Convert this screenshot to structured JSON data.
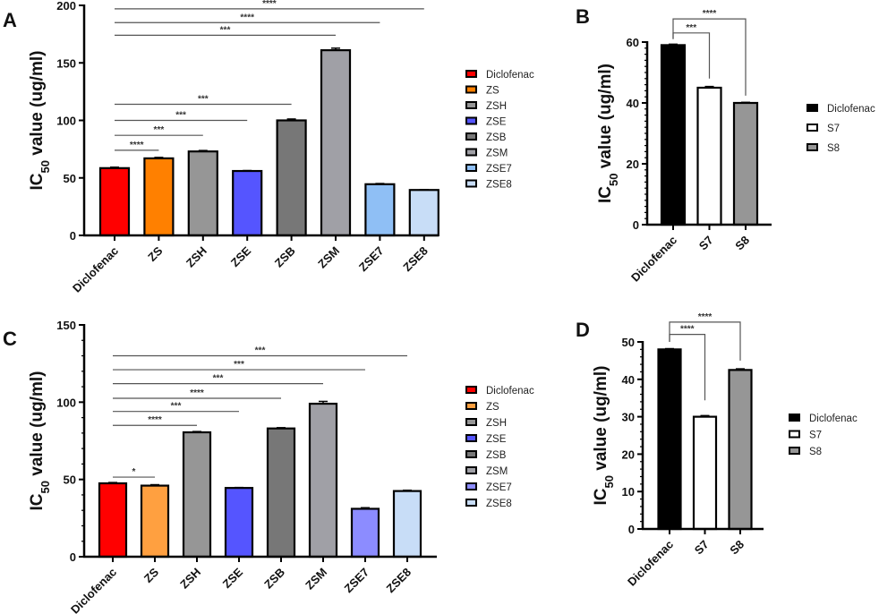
{
  "chart_data": [
    {
      "panel": "A",
      "type": "bar",
      "title": "",
      "xlabel": "",
      "ylabel": {
        "main": "IC",
        "sub": "50",
        "rest": " value (ug/ml)"
      },
      "ylim": [
        0,
        200
      ],
      "yticks": [
        0,
        50,
        100,
        150,
        200
      ],
      "categories": [
        "Diclofenac",
        "ZS",
        "ZSH",
        "ZSE",
        "ZSB",
        "ZSM",
        "ZSE7",
        "ZSE8"
      ],
      "values": [
        58.5,
        67,
        73,
        56,
        100,
        161,
        44.5,
        39.5
      ],
      "errors": [
        0.8,
        0.8,
        0.8,
        0.4,
        1.2,
        1.8,
        0.6,
        0.3
      ],
      "colors": [
        "#ff0000",
        "#ff8000",
        "#969696",
        "#5555ff",
        "#777777",
        "#a0a0a6",
        "#8fbff5",
        "#c8ddf7"
      ],
      "legend": {
        "placement": "right",
        "entries": [
          "Diclofenac",
          "ZS",
          "ZSH",
          "ZSE",
          "ZSB",
          "ZSM",
          "ZSE7",
          "ZSE8"
        ]
      },
      "significance": [
        {
          "from": 0,
          "to": 1,
          "label": "****",
          "y": 74
        },
        {
          "from": 0,
          "to": 2,
          "label": "***",
          "y": 87
        },
        {
          "from": 0,
          "to": 3,
          "label": "***",
          "y": 100
        },
        {
          "from": 0,
          "to": 4,
          "label": "***",
          "y": 114
        },
        {
          "from": 0,
          "to": 5,
          "label": "***",
          "y": 174
        },
        {
          "from": 0,
          "to": 6,
          "label": "****",
          "y": 185
        },
        {
          "from": 0,
          "to": 7,
          "label": "****",
          "y": 197
        }
      ]
    },
    {
      "panel": "B",
      "type": "bar",
      "title": "",
      "xlabel": "",
      "ylabel": {
        "main": "IC",
        "sub": "50",
        "rest": " value (ug/ml)"
      },
      "ylim": [
        0,
        60
      ],
      "yticks": [
        0,
        20,
        40,
        60
      ],
      "categories": [
        "Diclofenac",
        "S7",
        "S8"
      ],
      "values": [
        59,
        45,
        40
      ],
      "errors": [
        0.3,
        0.4,
        0.2
      ],
      "colors": [
        "#000000",
        "#ffffff",
        "#969696"
      ],
      "legend": {
        "placement": "right",
        "entries": [
          "Diclofenac",
          "S7",
          "S8"
        ]
      },
      "significance": [
        {
          "from": 0,
          "to": 1,
          "label": "***",
          "y": 63,
          "drop_from": 61,
          "drop_to": 48
        },
        {
          "from": 0,
          "to": 2,
          "label": "****",
          "y": 67.6,
          "drop_from": 61,
          "drop_to": 42.4
        }
      ]
    },
    {
      "panel": "C",
      "type": "bar",
      "title": "",
      "xlabel": "",
      "ylabel": {
        "main": "IC",
        "sub": "50",
        "rest": " value (ug/ml)"
      },
      "ylim": [
        0,
        150
      ],
      "yticks": [
        0,
        50,
        100,
        150
      ],
      "categories": [
        "Diclofenac",
        "ZS",
        "ZSH",
        "ZSE",
        "ZSB",
        "ZSM",
        "ZSE7",
        "ZSE8"
      ],
      "values": [
        47.5,
        46,
        80.5,
        44.5,
        83,
        99,
        31,
        42.5
      ],
      "errors": [
        0.5,
        0.6,
        0.5,
        0.3,
        0.5,
        1.5,
        0.7,
        0.5
      ],
      "colors": [
        "#ff0000",
        "#ffa040",
        "#969696",
        "#5555ff",
        "#777777",
        "#a0a0a6",
        "#8c8cff",
        "#c8ddf7"
      ],
      "legend": {
        "placement": "right",
        "entries": [
          "Diclofenac",
          "ZS",
          "ZSH",
          "ZSE",
          "ZSB",
          "ZSM",
          "ZSE7",
          "ZSE8"
        ]
      },
      "significance": [
        {
          "from": 0,
          "to": 1,
          "label": "*",
          "y": 51.5
        },
        {
          "from": 0,
          "to": 2,
          "label": "****",
          "y": 85
        },
        {
          "from": 0,
          "to": 3,
          "label": "***",
          "y": 94
        },
        {
          "from": 0,
          "to": 4,
          "label": "****",
          "y": 102.5
        },
        {
          "from": 0,
          "to": 5,
          "label": "***",
          "y": 112
        },
        {
          "from": 0,
          "to": 6,
          "label": "***",
          "y": 121
        },
        {
          "from": 0,
          "to": 7,
          "label": "***",
          "y": 130
        }
      ]
    },
    {
      "panel": "D",
      "type": "bar",
      "title": "",
      "xlabel": "",
      "ylabel": {
        "main": "IC",
        "sub": "50",
        "rest": " value (ug/ml)"
      },
      "ylim": [
        0,
        50
      ],
      "yticks": [
        0,
        10,
        20,
        30,
        40,
        50
      ],
      "categories": [
        "Diclofenac",
        "S7",
        "S8"
      ],
      "values": [
        48,
        30,
        42.5
      ],
      "errors": [
        0.2,
        0.3,
        0.3
      ],
      "colors": [
        "#000000",
        "#ffffff",
        "#969696"
      ],
      "legend": {
        "placement": "right",
        "entries": [
          "Diclofenac",
          "S7",
          "S8"
        ]
      },
      "significance": [
        {
          "from": 0,
          "to": 1,
          "label": "****",
          "y": 52,
          "drop_from": 50,
          "drop_to": 34.4
        },
        {
          "from": 0,
          "to": 2,
          "label": "****",
          "y": 55.3,
          "drop_from": 50,
          "drop_to": 45
        }
      ]
    }
  ]
}
